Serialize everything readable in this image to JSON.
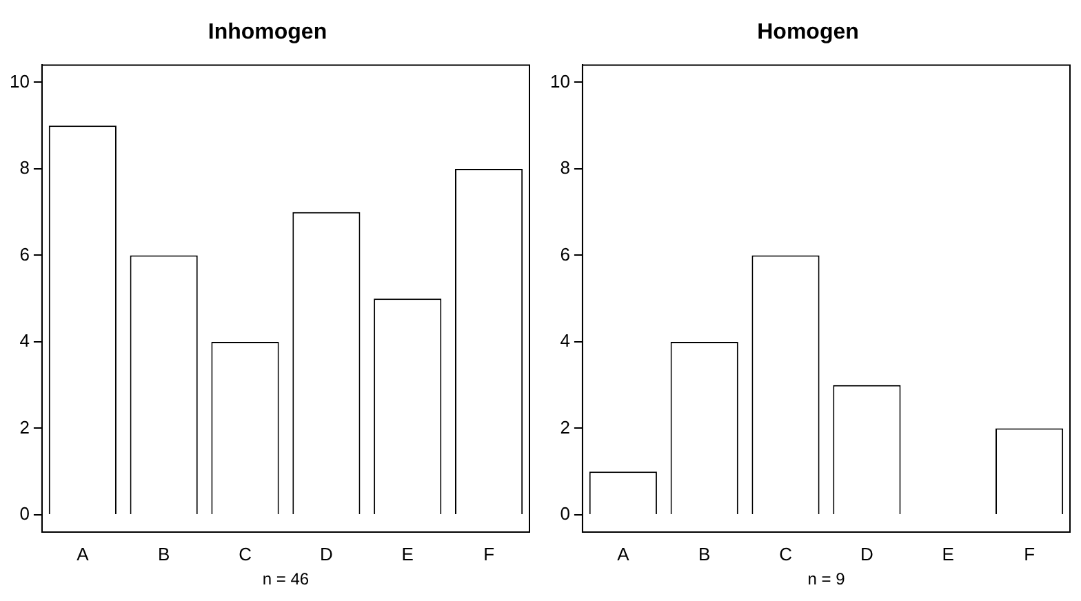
{
  "chart_data": [
    {
      "type": "bar",
      "title": "Inhomogen",
      "xlabel": "n = 46",
      "categories": [
        "A",
        "B",
        "C",
        "D",
        "E",
        "F"
      ],
      "values": [
        9,
        6,
        4,
        7,
        5,
        8
      ],
      "color": "#ffffff",
      "ylim": [
        -0.4,
        10.4
      ],
      "yticks": [
        0,
        2,
        4,
        6,
        8,
        10
      ],
      "grid": false,
      "legend": false
    },
    {
      "type": "bar",
      "title": "Homogen",
      "xlabel": "n = 9",
      "categories": [
        "A",
        "B",
        "C",
        "D",
        "E",
        "F"
      ],
      "values": [
        1,
        4,
        6,
        3,
        0,
        2
      ],
      "color": "#ffffff",
      "ylim": [
        -0.4,
        10.4
      ],
      "yticks": [
        0,
        2,
        4,
        6,
        8,
        10
      ],
      "grid": false,
      "legend": false
    }
  ]
}
